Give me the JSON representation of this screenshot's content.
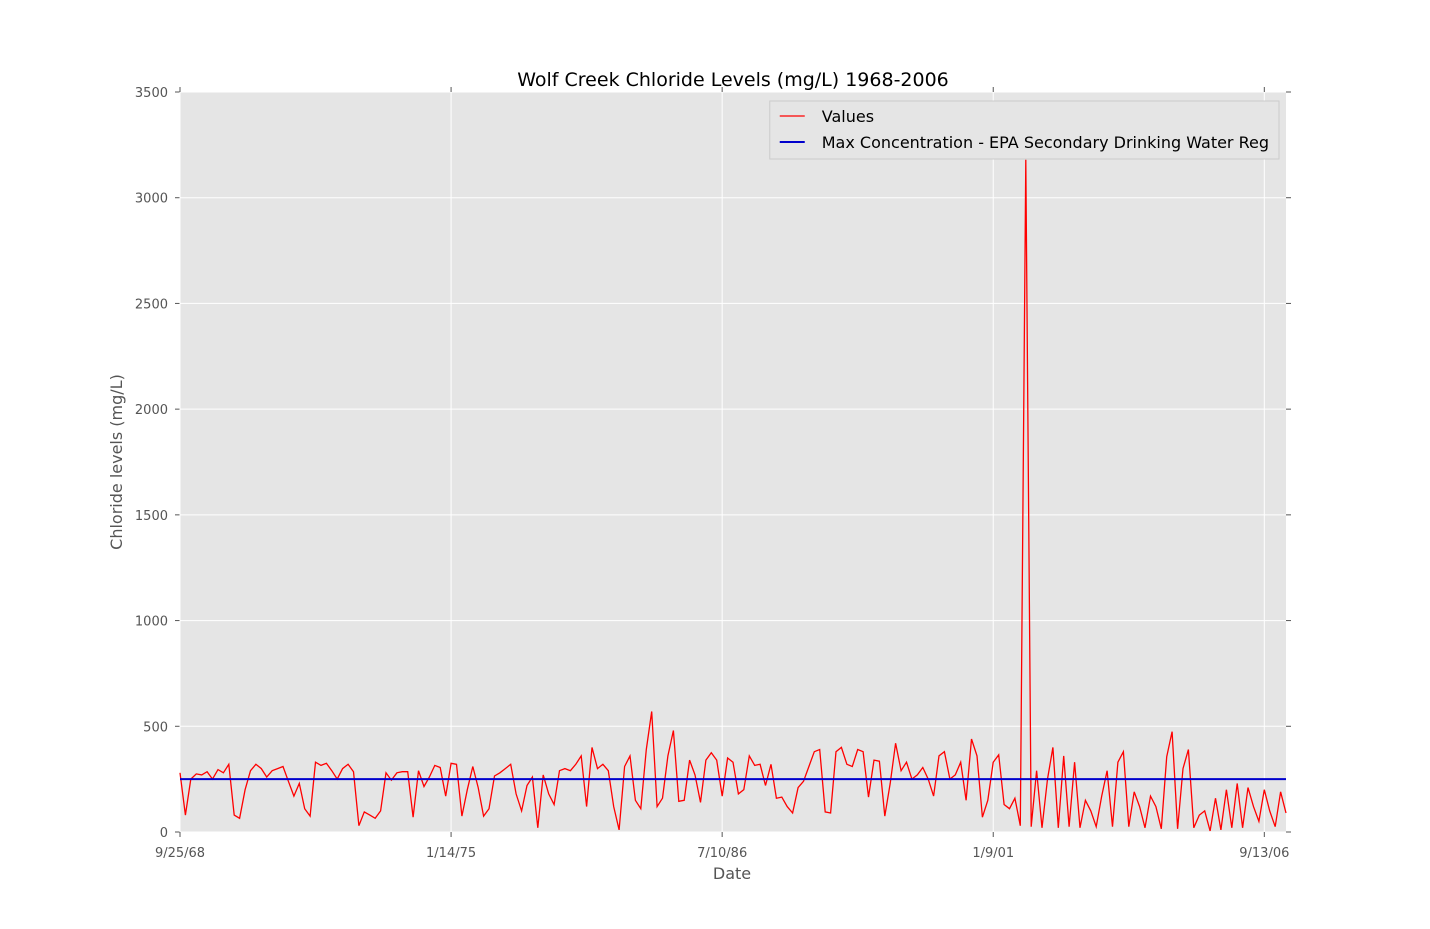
{
  "chart_data": {
    "type": "line",
    "title": "Wolf Creek Chloride Levels (mg/L) 1968-2006",
    "x_label": "Date",
    "y_label": "Chloride levels (mg/L)",
    "categories": [
      "9/25/68",
      null,
      null,
      null,
      null,
      null,
      null,
      null,
      null,
      null,
      null,
      null,
      null,
      null,
      null,
      null,
      null,
      null,
      null,
      null,
      null,
      null,
      null,
      null,
      null,
      null,
      null,
      null,
      null,
      null,
      null,
      null,
      null,
      null,
      null,
      null,
      null,
      null,
      null,
      null,
      null,
      null,
      null,
      null,
      null,
      null,
      null,
      null,
      null,
      null,
      "1/14/75",
      null,
      null,
      null,
      null,
      null,
      null,
      null,
      null,
      null,
      null,
      null,
      null,
      null,
      null,
      null,
      null,
      null,
      null,
      null,
      null,
      null,
      null,
      null,
      null,
      null,
      null,
      null,
      null,
      null,
      null,
      null,
      null,
      null,
      null,
      null,
      null,
      null,
      null,
      null,
      null,
      null,
      null,
      null,
      null,
      null,
      null,
      null,
      null,
      null,
      "7/10/86",
      null,
      null,
      null,
      null,
      null,
      null,
      null,
      null,
      null,
      null,
      null,
      null,
      null,
      null,
      null,
      null,
      null,
      null,
      null,
      null,
      null,
      null,
      null,
      null,
      null,
      null,
      null,
      null,
      null,
      null,
      null,
      null,
      null,
      null,
      null,
      null,
      null,
      null,
      null,
      null,
      null,
      null,
      null,
      null,
      null,
      null,
      null,
      null,
      null,
      "1/9/01",
      null,
      null,
      null,
      null,
      null,
      null,
      null,
      null,
      null,
      null,
      null,
      null,
      null,
      null,
      null,
      null,
      null,
      null,
      null,
      null,
      null,
      null,
      null,
      null,
      null,
      null,
      null,
      null,
      null,
      null,
      null,
      null,
      null,
      null,
      null,
      null,
      null,
      null,
      null,
      null,
      null,
      null,
      null,
      null,
      null,
      null,
      null,
      null,
      null,
      "9/13/06",
      null,
      null,
      null,
      null
    ],
    "series": [
      {
        "name": "Values",
        "color": "#ff0000",
        "values": [
          280,
          80,
          250,
          275,
          270,
          285,
          250,
          295,
          280,
          320,
          80,
          65,
          200,
          290,
          320,
          300,
          260,
          290,
          300,
          310,
          240,
          170,
          230,
          110,
          75,
          330,
          315,
          325,
          290,
          250,
          300,
          320,
          285,
          30,
          95,
          80,
          65,
          100,
          280,
          245,
          280,
          285,
          285,
          70,
          290,
          215,
          260,
          315,
          305,
          170,
          325,
          320,
          75,
          200,
          310,
          210,
          75,
          110,
          265,
          280,
          300,
          320,
          180,
          100,
          220,
          260,
          20,
          270,
          180,
          130,
          290,
          300,
          290,
          320,
          360,
          120,
          400,
          300,
          320,
          290,
          120,
          10,
          310,
          360,
          150,
          110,
          390,
          570,
          120,
          160,
          360,
          480,
          145,
          150,
          340,
          270,
          140,
          340,
          375,
          340,
          170,
          350,
          330,
          180,
          200,
          360,
          315,
          320,
          220,
          320,
          160,
          165,
          120,
          90,
          210,
          240,
          310,
          380,
          390,
          95,
          90,
          380,
          400,
          320,
          310,
          390,
          380,
          165,
          340,
          335,
          75,
          230,
          420,
          290,
          330,
          250,
          270,
          305,
          250,
          170,
          360,
          380,
          250,
          270,
          330,
          150,
          440,
          360,
          70,
          150,
          330,
          365,
          130,
          110,
          160,
          30,
          3180,
          25,
          290,
          20,
          250,
          400,
          20,
          360,
          25,
          330,
          20,
          150,
          100,
          25,
          170,
          290,
          25,
          330,
          380,
          25,
          190,
          120,
          20,
          170,
          120,
          15,
          355,
          475,
          15,
          300,
          390,
          20,
          80,
          100,
          5,
          160,
          10,
          200,
          20,
          230,
          20,
          210,
          120,
          50,
          200,
          100,
          25,
          190,
          90
        ]
      }
    ],
    "reference_line": {
      "name": "Max Concentration - EPA Secondary Drinking Water Reg",
      "color": "#0000cc",
      "value": 250
    },
    "ylim": [
      0,
      3500
    ],
    "yticks": [
      0,
      500,
      1000,
      1500,
      2000,
      2500,
      3000,
      3500
    ],
    "grid": true,
    "legend": "upper right"
  }
}
